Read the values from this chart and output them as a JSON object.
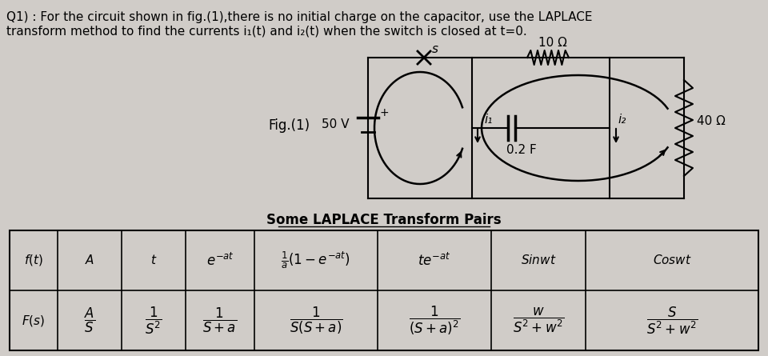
{
  "bg_color": "#d0ccc8",
  "title_line1": "Q1) : For the circuit shown in fig.(1),there is no initial charge on the capacitor, use the LAPLACE",
  "title_line2": "transform method to find the currents i₁(t) and i₂(t) when the switch is closed at t=0.",
  "fig_label": "Fig.(1)",
  "voltage_label": "50 V",
  "resistor1_label": "10 Ω",
  "capacitor_label": "0.2 F",
  "current1_label": "i₁",
  "current2_label": "i₂",
  "resistor2_label": "40 Ω",
  "switch_label": "s",
  "table_title": "Some LAPLACE Transform Pairs"
}
